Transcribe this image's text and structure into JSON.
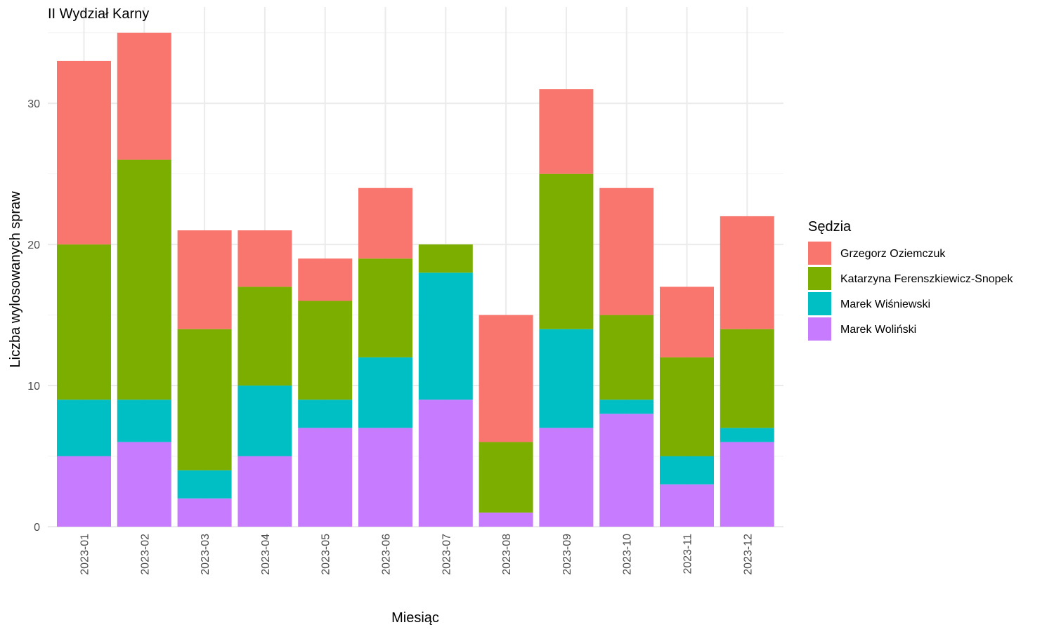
{
  "chart_data": {
    "type": "bar",
    "stacked": true,
    "title": "II Wydział Karny",
    "xlabel": "Miesiąc",
    "ylabel": "Liczba wylosowanych spraw",
    "ylim": [
      0,
      35
    ],
    "yticks": [
      0,
      10,
      20,
      30
    ],
    "grid": true,
    "legend_title": "Sędzia",
    "legend_position": "right",
    "categories": [
      "2023-01",
      "2023-02",
      "2023-03",
      "2023-04",
      "2023-05",
      "2023-06",
      "2023-07",
      "2023-08",
      "2023-09",
      "2023-10",
      "2023-11",
      "2023-12"
    ],
    "series": [
      {
        "name": "Marek Woliński",
        "color": "#C77CFF",
        "values": [
          5,
          6,
          2,
          5,
          7,
          7,
          9,
          1,
          7,
          8,
          3,
          6
        ]
      },
      {
        "name": "Marek Wiśniewski",
        "color": "#00BFC4",
        "values": [
          4,
          3,
          2,
          5,
          2,
          5,
          9,
          0,
          7,
          1,
          2,
          1
        ]
      },
      {
        "name": "Katarzyna Ferenszkiewicz-Snopek",
        "color": "#7CAE00",
        "values": [
          11,
          17,
          10,
          7,
          7,
          7,
          2,
          5,
          11,
          6,
          7,
          7
        ]
      },
      {
        "name": "Grzegorz Oziemczuk",
        "color": "#F8766D",
        "values": [
          13,
          9,
          7,
          4,
          3,
          5,
          0,
          9,
          6,
          9,
          5,
          8
        ]
      }
    ],
    "legend_order": [
      "Grzegorz Oziemczuk",
      "Katarzyna Ferenszkiewicz-Snopek",
      "Marek Wiśniewski",
      "Marek Woliński"
    ]
  }
}
